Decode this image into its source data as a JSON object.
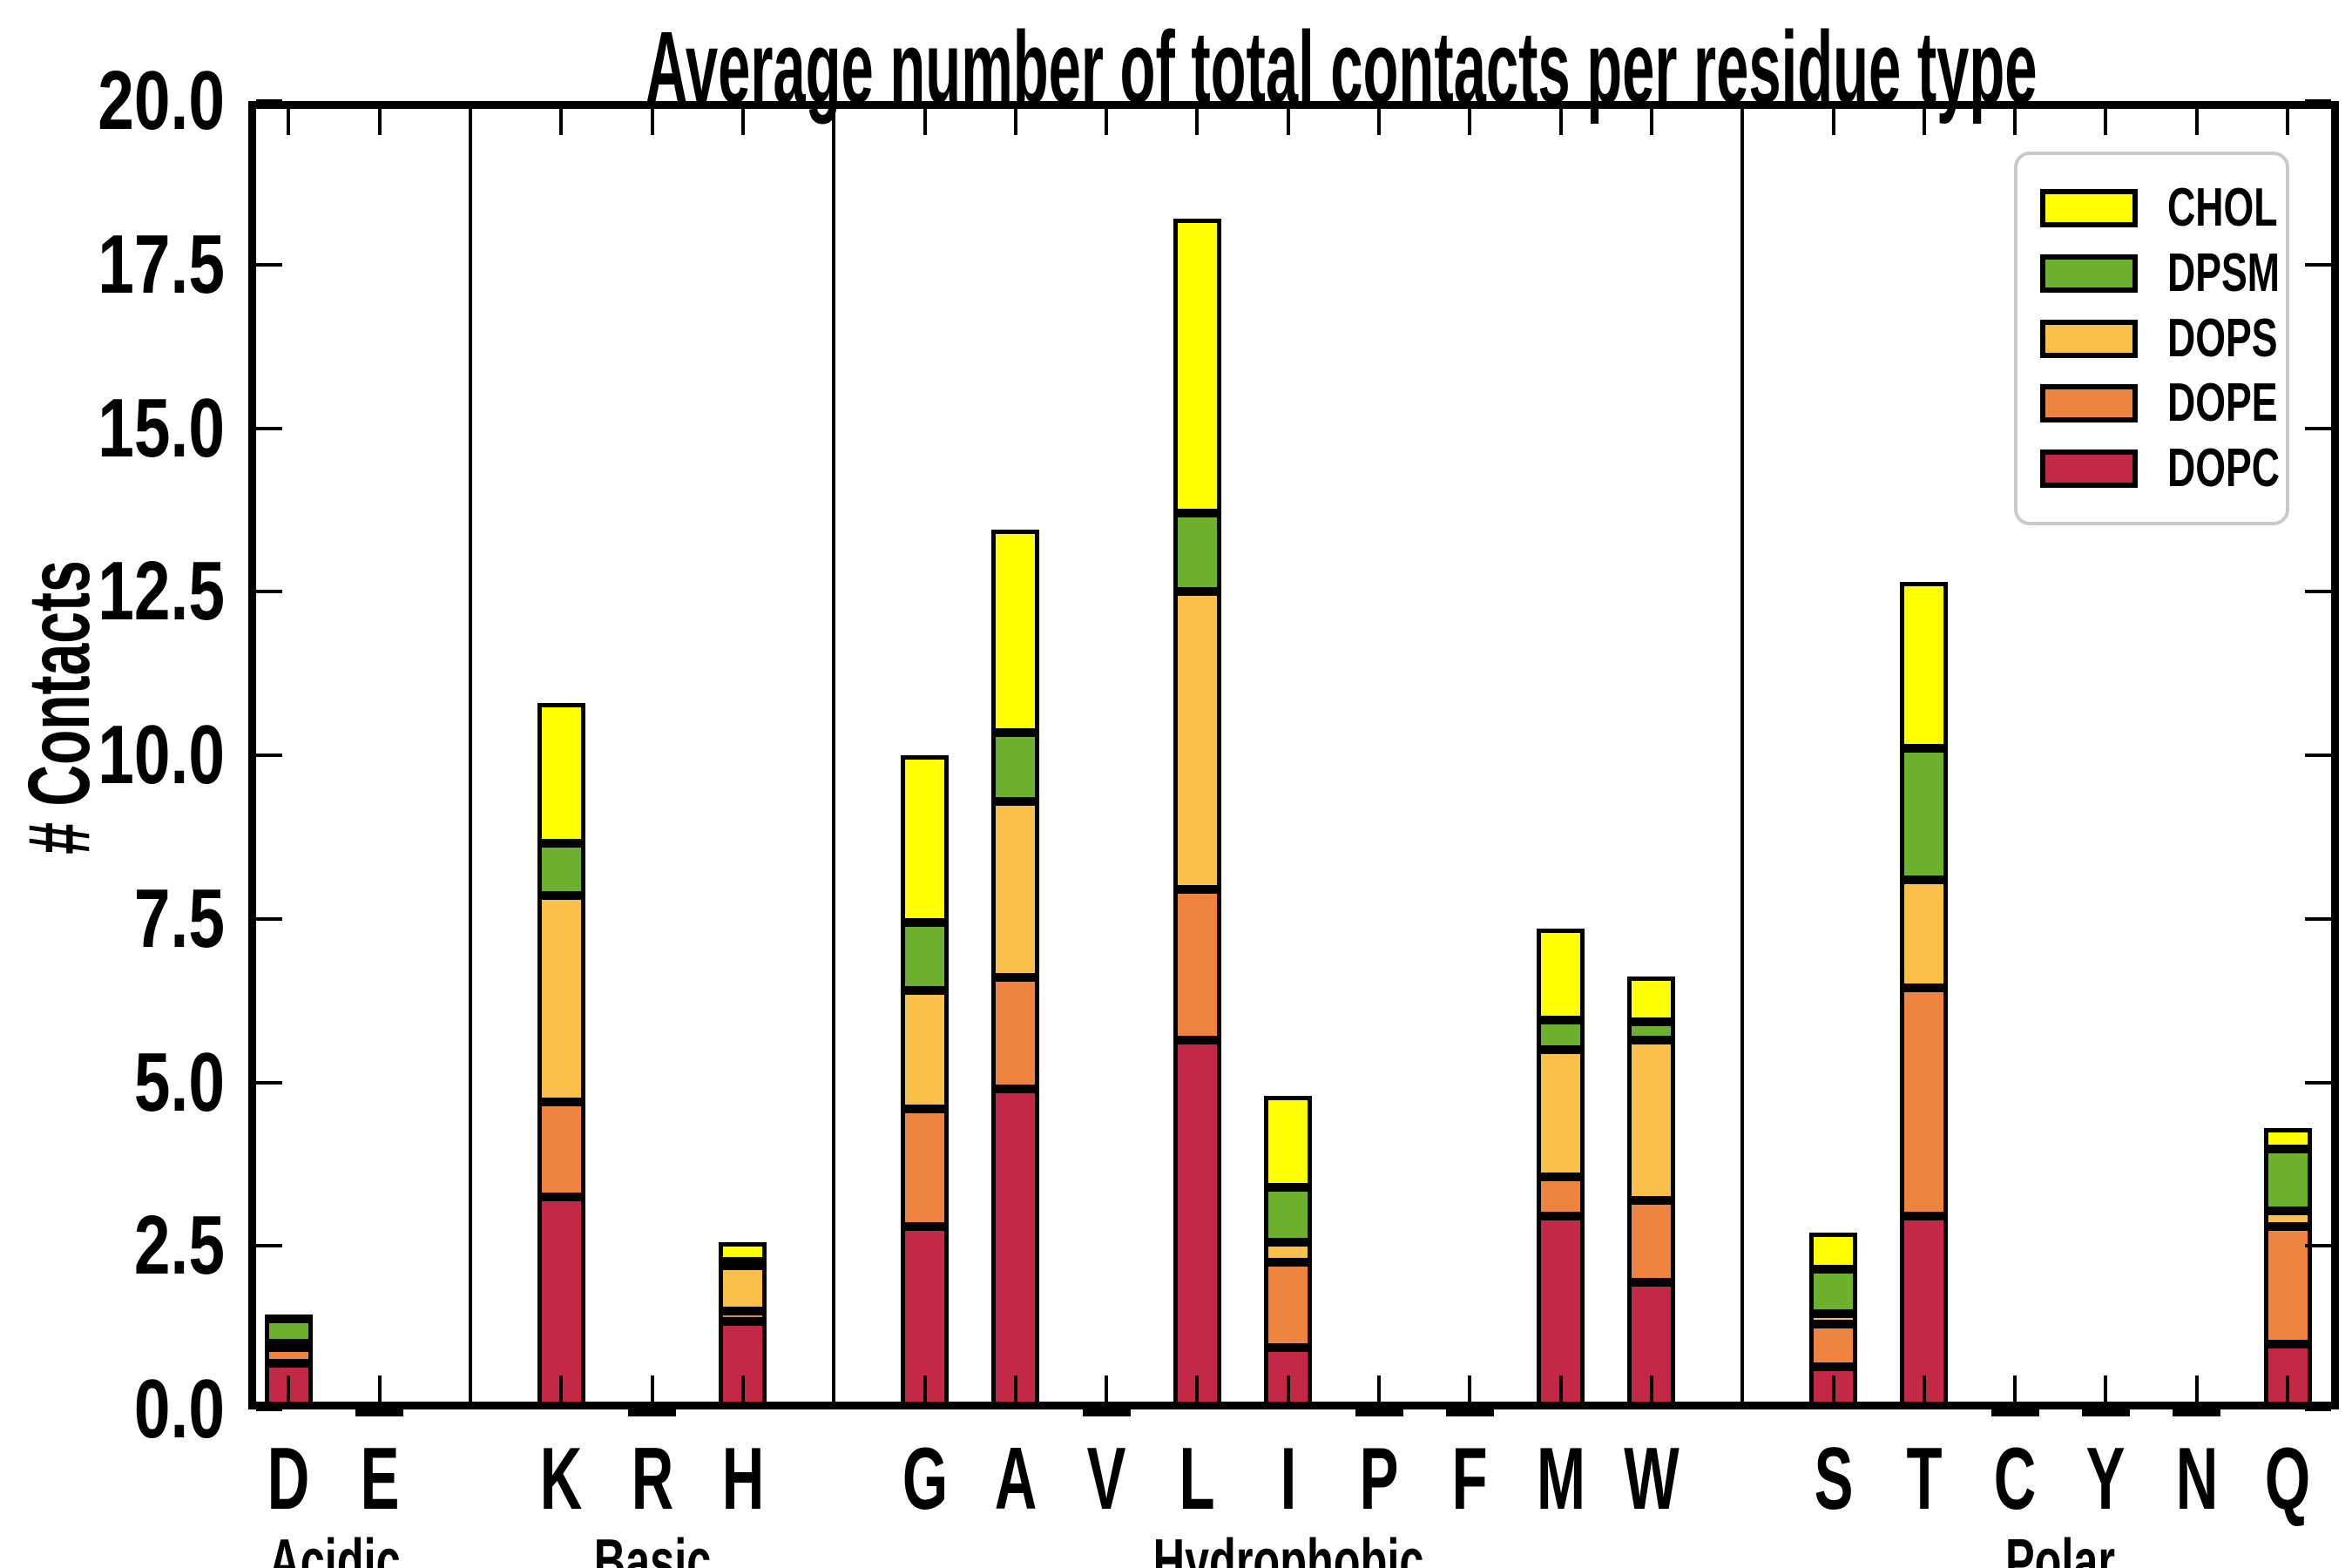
{
  "title": "Average number of total contacts per residue type",
  "y_axis": {
    "label": "# Contacts",
    "ticks": [
      "0.0",
      "2.5",
      "5.0",
      "7.5",
      "10.0",
      "12.5",
      "15.0",
      "17.5",
      "20.0"
    ],
    "min": 0,
    "max": 20
  },
  "legend": {
    "position": "upper right",
    "items": [
      {
        "label": "CHOL",
        "color": "#FFFF00"
      },
      {
        "label": "DPSM",
        "color": "#6CB02E"
      },
      {
        "label": "DOPS",
        "color": "#FAC04A"
      },
      {
        "label": "DOPE",
        "color": "#EE8440"
      },
      {
        "label": "DOPC",
        "color": "#C32847"
      }
    ]
  },
  "chart_data": {
    "type": "bar",
    "stacked": true,
    "title": "Average number of total contacts per residue type",
    "xlabel": "",
    "ylabel": "# Contacts",
    "ylim": [
      0,
      20
    ],
    "ytick_step": 2.5,
    "grid": false,
    "legend_position": "upper right",
    "categories": [
      "D",
      "E",
      "K",
      "R",
      "H",
      "G",
      "A",
      "V",
      "L",
      "I",
      "P",
      "F",
      "M",
      "W",
      "S",
      "T",
      "C",
      "Y",
      "N",
      "Q"
    ],
    "groups": [
      {
        "label": "Acidic",
        "residues": [
          "D",
          "E"
        ]
      },
      {
        "label": "Basic",
        "residues": [
          "K",
          "R",
          "H"
        ]
      },
      {
        "label": "Hydrophobic",
        "residues": [
          "G",
          "A",
          "V",
          "L",
          "I",
          "P",
          "F",
          "M",
          "W"
        ]
      },
      {
        "label": "Polar",
        "residues": [
          "S",
          "T",
          "C",
          "Y",
          "N",
          "Q"
        ]
      }
    ],
    "series": [
      {
        "name": "DOPC",
        "color": "#C32847",
        "values": [
          0.7,
          0.03,
          3.25,
          0.03,
          1.35,
          2.8,
          4.9,
          0.03,
          5.65,
          0.95,
          0.03,
          0.03,
          2.95,
          1.95,
          0.65,
          2.95,
          0.03,
          0.03,
          0.03,
          1.0
        ]
      },
      {
        "name": "DOPE",
        "color": "#EE8440",
        "values": [
          0.26,
          0,
          1.45,
          0,
          0.15,
          1.8,
          1.7,
          0,
          2.3,
          1.3,
          0,
          0,
          0.6,
          1.25,
          0.65,
          3.5,
          0,
          0,
          0,
          1.8
        ]
      },
      {
        "name": "DOPS",
        "color": "#FAC04A",
        "values": [
          0.05,
          0,
          3.15,
          0,
          0.7,
          1.8,
          2.7,
          0,
          4.55,
          0.3,
          0,
          0,
          1.95,
          2.45,
          0.17,
          1.65,
          0,
          0,
          0,
          0.23
        ]
      },
      {
        "name": "DPSM",
        "color": "#6CB02E",
        "values": [
          0.37,
          0,
          0.8,
          0,
          0.07,
          1.05,
          1.05,
          0,
          1.2,
          0.85,
          0,
          0,
          0.45,
          0.27,
          0.68,
          2.0,
          0,
          0,
          0,
          0.95
        ]
      },
      {
        "name": "CHOL",
        "color": "#FFFF00",
        "values": [
          0.07,
          0,
          2.15,
          0,
          0.28,
          2.55,
          3.1,
          0,
          4.5,
          1.4,
          0,
          0,
          1.4,
          0.7,
          0.55,
          2.55,
          0,
          0,
          0,
          0.32
        ]
      }
    ],
    "totals": {
      "D": 1.45,
      "E": 0.03,
      "K": 10.8,
      "R": 0.03,
      "H": 2.55,
      "G": 10.0,
      "A": 13.45,
      "V": 0.03,
      "L": 18.2,
      "I": 4.8,
      "P": 0.03,
      "F": 0.03,
      "M": 7.35,
      "W": 6.6,
      "S": 2.7,
      "T": 12.65,
      "C": 0.03,
      "Y": 0.03,
      "N": 0.03,
      "Q": 4.3
    }
  }
}
